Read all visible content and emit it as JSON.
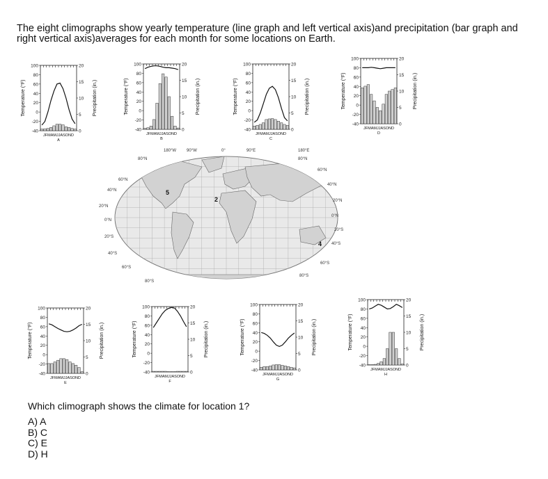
{
  "intro": "The eight climographs show yearly temperature (line graph and left vertical axis)and precipitation (bar graph and right vertical axis)averages for each month for some locations on Earth.",
  "axes": {
    "left_label": "Temperature (°F)",
    "right_label": "Precipitation (in.)",
    "left_ticks": [
      "100",
      "80",
      "60",
      "40",
      "20",
      "0",
      "-20",
      "-40"
    ],
    "right_ticks": [
      "20",
      "15",
      "10",
      "5",
      "0"
    ],
    "months": "JFMAMJJASOND"
  },
  "map": {
    "lon_labels": [
      "180°W",
      "90°W",
      "0°",
      "90°E",
      "180°E"
    ],
    "lat_labels_left": [
      "80°N",
      "60°N",
      "40°N",
      "20°N",
      "0°N",
      "20°S",
      "40°S",
      "60°S",
      "80°S"
    ],
    "lat_labels_right": [
      "80°N",
      "60°N",
      "40°N",
      "20°N",
      "0°N",
      "20°S",
      "40°S",
      "60°S",
      "80°S"
    ],
    "markers": [
      "5",
      "2",
      "4"
    ]
  },
  "chart_data": [
    {
      "type": "line+bar",
      "label": "A",
      "ylim": [
        -40,
        100
      ],
      "y2lim": [
        0,
        20
      ],
      "temperature": [
        -28,
        -20,
        0,
        25,
        45,
        60,
        62,
        50,
        30,
        5,
        -15,
        -25
      ],
      "precipitation": [
        0.5,
        0.6,
        0.7,
        1,
        1.5,
        2,
        2,
        1.8,
        1.2,
        1,
        0.7,
        0.5
      ]
    },
    {
      "type": "line+bar",
      "label": "B",
      "ylim": [
        -40,
        100
      ],
      "y2lim": [
        0,
        20
      ],
      "temperature": [
        90,
        93,
        95,
        96,
        96,
        95,
        93,
        92,
        92,
        91,
        90,
        88
      ],
      "precipitation": [
        0.3,
        0.5,
        1,
        3,
        8,
        14,
        17,
        16,
        10,
        4,
        1,
        0.4
      ]
    },
    {
      "type": "line+bar",
      "label": "C",
      "ylim": [
        -40,
        100
      ],
      "y2lim": [
        0,
        20
      ],
      "temperature": [
        -25,
        -20,
        -5,
        15,
        35,
        48,
        52,
        45,
        28,
        5,
        -15,
        -22
      ],
      "precipitation": [
        1,
        1.2,
        1.5,
        2,
        3,
        3.2,
        3.3,
        3,
        2.5,
        2,
        1.5,
        1.2
      ]
    },
    {
      "type": "line+bar",
      "label": "D",
      "ylim": [
        -40,
        100
      ],
      "y2lim": [
        0,
        20
      ],
      "temperature": [
        80,
        80,
        80,
        81,
        80,
        79,
        78,
        79,
        80,
        80,
        80,
        80
      ],
      "precipitation": [
        11,
        11.5,
        12,
        9,
        7,
        5,
        4,
        6,
        9,
        10,
        10.5,
        11
      ]
    },
    {
      "type": "line+bar",
      "label": "E",
      "ylim": [
        -40,
        100
      ],
      "y2lim": [
        0,
        20
      ],
      "temperature": [
        66,
        64,
        60,
        56,
        53,
        50,
        49,
        50,
        53,
        57,
        62,
        65
      ],
      "precipitation": [
        3,
        3,
        3.5,
        4,
        4.5,
        4.5,
        4.2,
        3.5,
        3,
        2.5,
        1.8,
        0.5
      ]
    },
    {
      "type": "line+bar",
      "label": "F",
      "ylim": [
        -40,
        100
      ],
      "y2lim": [
        0,
        20
      ],
      "temperature": [
        55,
        65,
        75,
        85,
        92,
        96,
        98,
        97,
        90,
        80,
        68,
        57
      ],
      "precipitation": [
        0.2,
        0.2,
        0.2,
        0.2,
        0.2,
        0.1,
        0.1,
        0.1,
        0.2,
        0.2,
        0.2,
        0.2
      ]
    },
    {
      "type": "line+bar",
      "label": "G",
      "ylim": [
        -40,
        100
      ],
      "y2lim": [
        0,
        20
      ],
      "temperature": [
        40,
        38,
        34,
        28,
        20,
        13,
        10,
        13,
        20,
        28,
        34,
        39
      ],
      "precipitation": [
        0.8,
        1,
        1,
        1.2,
        1.5,
        1.6,
        1.6,
        1.4,
        1.2,
        1,
        0.8,
        0.6
      ]
    },
    {
      "type": "line+bar",
      "label": "H",
      "ylim": [
        -40,
        100
      ],
      "y2lim": [
        0,
        20
      ],
      "temperature": [
        80,
        82,
        86,
        90,
        88,
        84,
        80,
        81,
        85,
        90,
        87,
        83
      ],
      "precipitation": [
        0.1,
        0.1,
        0.2,
        0.5,
        1,
        2,
        5,
        10,
        10,
        5,
        2,
        0.3
      ]
    }
  ],
  "question": "Which climograph shows the climate for location 1?",
  "choices": [
    "A) A",
    "B) C",
    "C) E",
    "D) H"
  ]
}
